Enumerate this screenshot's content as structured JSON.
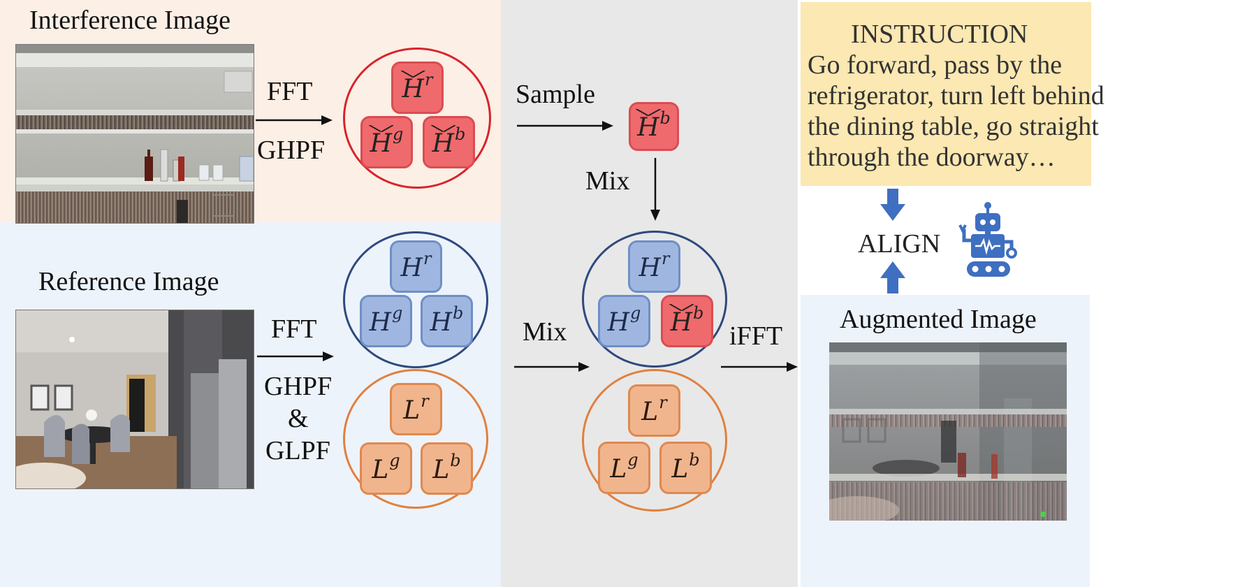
{
  "interference": {
    "title": "Interference Image",
    "ops": [
      "FFT",
      "GHPF"
    ],
    "tiles": [
      {
        "base": "H",
        "sup": "r",
        "hat": true
      },
      {
        "base": "H",
        "sup": "g",
        "hat": true
      },
      {
        "base": "H",
        "sup": "b",
        "hat": true
      }
    ]
  },
  "reference": {
    "title": "Reference Image",
    "ops": [
      "FFT",
      "GHPF",
      "&",
      "GLPF"
    ],
    "high_tiles": [
      {
        "base": "H",
        "sup": "r",
        "hat": false
      },
      {
        "base": "H",
        "sup": "g",
        "hat": false
      },
      {
        "base": "H",
        "sup": "b",
        "hat": false
      }
    ],
    "low_tiles": [
      {
        "base": "L",
        "sup": "r"
      },
      {
        "base": "L",
        "sup": "g"
      },
      {
        "base": "L",
        "sup": "b"
      }
    ]
  },
  "middle": {
    "sample_label": "Sample",
    "sampled_tile": {
      "base": "H",
      "sup": "b",
      "hat": true
    },
    "mix_label_top": "Mix",
    "mix_label_left": "Mix",
    "ifft_label": "iFFT",
    "mixed_high_tiles": [
      {
        "base": "H",
        "sup": "r",
        "hat": false
      },
      {
        "base": "H",
        "sup": "g",
        "hat": false
      },
      {
        "base": "H",
        "sup": "b",
        "hat": true
      }
    ],
    "mixed_low_tiles": [
      {
        "base": "L",
        "sup": "r"
      },
      {
        "base": "L",
        "sup": "g"
      },
      {
        "base": "L",
        "sup": "b"
      }
    ]
  },
  "instruction": {
    "title": "INSTRUCTION",
    "lines": [
      "Go forward, pass by the",
      "refrigerator, turn left behind",
      "the dining table, go straight",
      "through the doorway…"
    ]
  },
  "align_label": "ALIGN",
  "augmented_title": "Augmented Image",
  "colors": {
    "interference_bg": "#fcefe6",
    "reference_bg": "#edf3fb",
    "middle_bg": "#e8e8e8",
    "instruction_bg": "#fbe8b2",
    "red_circle": "#d8242b",
    "blue_circle": "#2e4a7e",
    "orange_circle": "#e0803f",
    "arrow_blue": "#3f6fc0",
    "robot_blue": "#3f6fc0"
  }
}
